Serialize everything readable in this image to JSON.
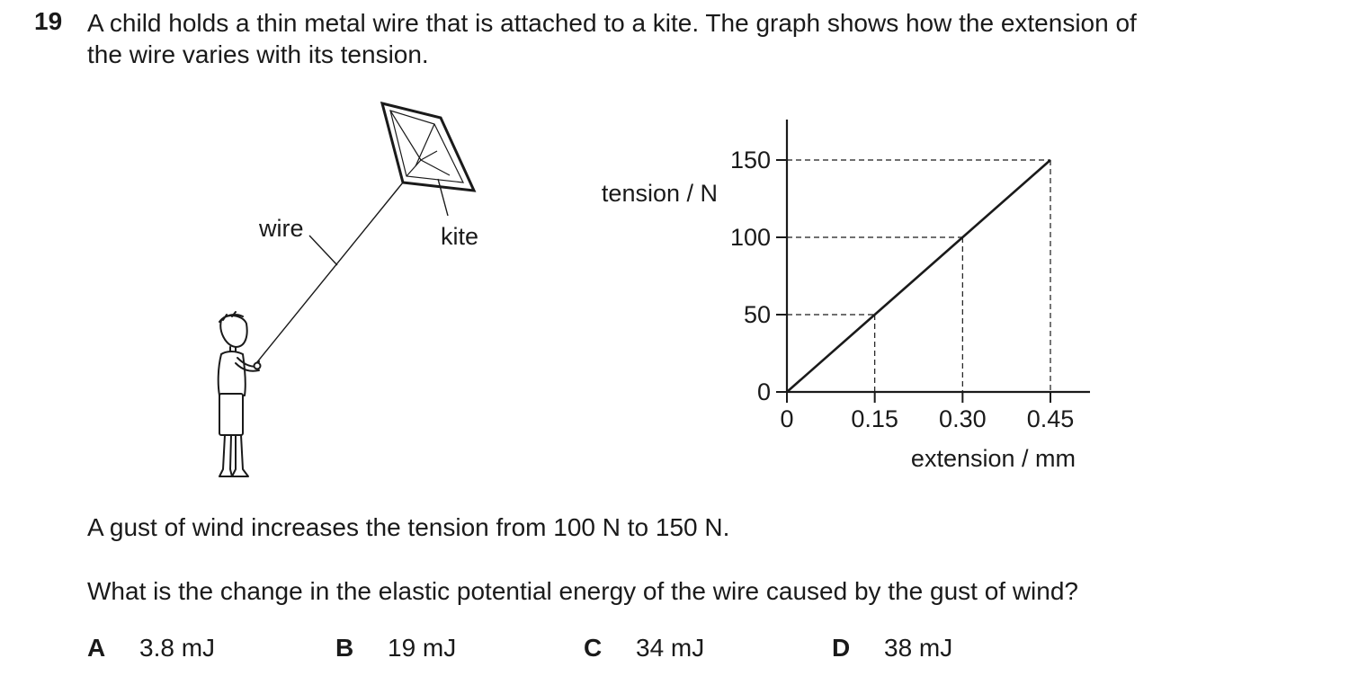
{
  "question": {
    "number": "19",
    "stem_lines": [
      "A child holds a thin metal wire that is attached to a kite. The graph shows how the extension of",
      "the wire varies with its tension."
    ],
    "gust_text": "A gust of wind increases the tension from 100 N to 150 N.",
    "prompt": "What is the change in the elastic potential energy of the wire caused by the gust of wind?",
    "options": [
      {
        "letter": "A",
        "value": "3.8 mJ"
      },
      {
        "letter": "B",
        "value": "19 mJ"
      },
      {
        "letter": "C",
        "value": "34 mJ"
      },
      {
        "letter": "D",
        "value": "38 mJ"
      }
    ]
  },
  "illustration": {
    "wire_label": "wire",
    "kite_label": "kite"
  },
  "chart_data": {
    "type": "line",
    "ylabel": "tension / N",
    "xlabel": "extension / mm",
    "x_ticks": [
      "0",
      "0.15",
      "0.30",
      "0.45"
    ],
    "y_ticks": [
      "0",
      "50",
      "100",
      "150"
    ],
    "xlim": [
      0,
      0.45
    ],
    "ylim": [
      0,
      150
    ],
    "grid": false,
    "guide_lines": "dashed",
    "series": [
      {
        "x": [
          0,
          0.15,
          0.3,
          0.45
        ],
        "y": [
          0,
          50,
          100,
          150
        ]
      }
    ]
  }
}
